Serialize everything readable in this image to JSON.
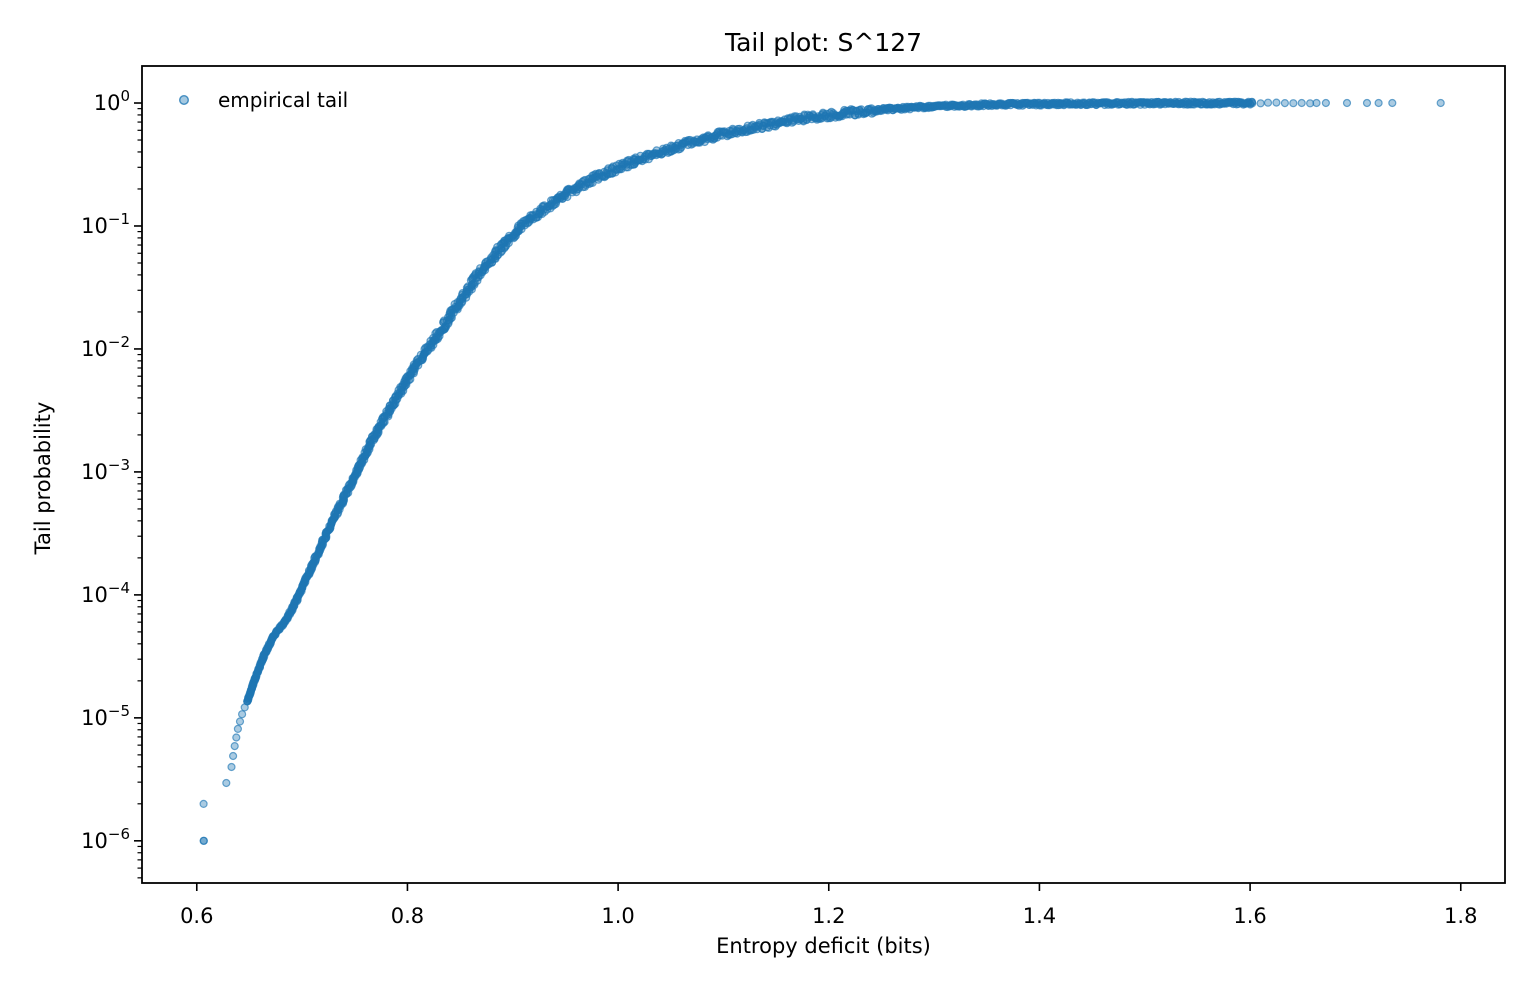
{
  "chart_data": {
    "type": "scatter",
    "title": "Tail plot: S^127",
    "xlabel": "Entropy deficit (bits)",
    "ylabel": "Tail probability",
    "y_scale": "log",
    "grid": false,
    "background": "#ffffff",
    "axis_color": "#000000",
    "x_axis": {
      "lim": [
        0.548,
        1.842
      ],
      "ticks": [
        0.6,
        0.8,
        1.0,
        1.2,
        1.4,
        1.6,
        1.8
      ],
      "tick_labels": [
        "0.6",
        "0.8",
        "1.0",
        "1.2",
        "1.4",
        "1.6",
        "1.8"
      ]
    },
    "y_axis": {
      "log_lim": [
        -6.343,
        0.301
      ],
      "tick_exponents": [
        0,
        -1,
        -2,
        -3,
        -4,
        -5,
        -6
      ],
      "minor_ticks": "log-decades 2-9"
    },
    "legend": {
      "label": "empirical tail",
      "location": "upper left",
      "frame": false
    },
    "series": [
      {
        "name": "empirical tail",
        "marker": "circle",
        "marker_color": "#1f77b4",
        "marker_radius_px": 3.5,
        "low_tail_points_x_log10y": [
          [
            0.6065,
            -6.0
          ],
          [
            0.6068,
            -6.0
          ],
          [
            0.6065,
            -5.7
          ],
          [
            0.628,
            -5.53
          ],
          [
            0.633,
            -5.4
          ],
          [
            0.6345,
            -5.31
          ],
          [
            0.636,
            -5.23
          ],
          [
            0.6375,
            -5.16
          ],
          [
            0.639,
            -5.09
          ],
          [
            0.641,
            -5.03
          ],
          [
            0.643,
            -4.97
          ],
          [
            0.6455,
            -4.915
          ],
          [
            0.648,
            -4.865
          ]
        ],
        "curve_anchors_x_log10y": [
          [
            0.648,
            -4.865
          ],
          [
            0.6555,
            -4.68
          ],
          [
            0.6635,
            -4.5
          ],
          [
            0.673,
            -4.33
          ],
          [
            0.684,
            -4.215
          ],
          [
            0.6915,
            -4.1
          ],
          [
            0.698,
            -3.98
          ],
          [
            0.706,
            -3.83
          ],
          [
            0.717,
            -3.62
          ],
          [
            0.729,
            -3.4
          ],
          [
            0.741,
            -3.19
          ],
          [
            0.753,
            -2.97
          ],
          [
            0.768,
            -2.72
          ],
          [
            0.786,
            -2.45
          ],
          [
            0.806,
            -2.16
          ],
          [
            0.826,
            -1.92
          ],
          [
            0.846,
            -1.66
          ],
          [
            0.868,
            -1.39
          ],
          [
            0.892,
            -1.14
          ],
          [
            0.917,
            -0.94
          ],
          [
            0.946,
            -0.76
          ],
          [
            0.98,
            -0.6
          ],
          [
            1.016,
            -0.47
          ],
          [
            1.052,
            -0.365
          ],
          [
            1.092,
            -0.265
          ],
          [
            1.133,
            -0.19
          ],
          [
            1.174,
            -0.125
          ],
          [
            1.215,
            -0.082
          ],
          [
            1.256,
            -0.05
          ],
          [
            1.3,
            -0.028
          ],
          [
            1.35,
            -0.014
          ],
          [
            1.42,
            -0.006
          ],
          [
            1.5,
            -0.002
          ],
          [
            1.602,
            -0.001
          ]
        ],
        "top_value": 1.0,
        "top_cluster_x": [
          1.602,
          1.61,
          1.617,
          1.625,
          1.633,
          1.641,
          1.649,
          1.657
        ],
        "top_outlier_x": [
          1.663,
          1.672,
          1.692,
          1.711,
          1.722,
          1.735,
          1.781
        ],
        "x_min": 0.6065,
        "x_max": 1.781,
        "y_min": 1e-06,
        "y_max": 1.0
      }
    ]
  }
}
